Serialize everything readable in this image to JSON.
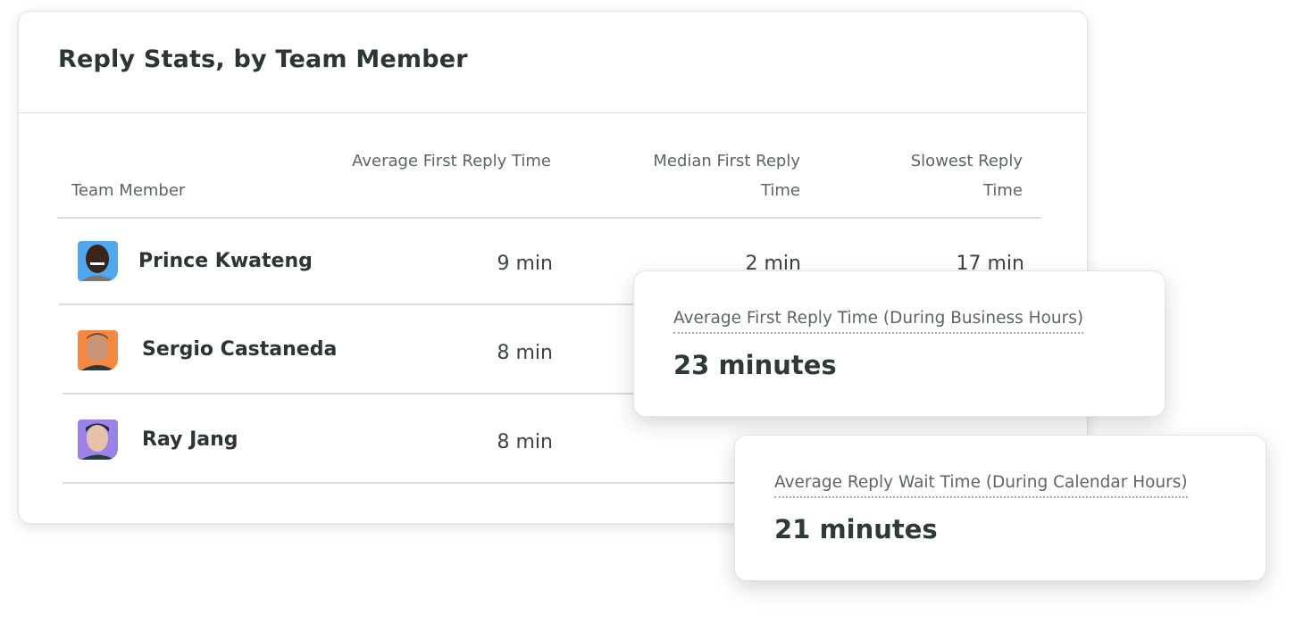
{
  "card": {
    "title": "Reply Stats, by Team Member",
    "columns": [
      "Team Member",
      "Average First Reply Time",
      "Median First Reply Time",
      "Slowest Reply Time"
    ],
    "column_lines": {
      "median": [
        "Median First Reply",
        "Time"
      ],
      "slowest": [
        "Slowest Reply",
        "Time"
      ]
    },
    "rows": [
      {
        "name": "Prince Kwateng",
        "avg": "9 min",
        "median": "2 min",
        "slowest": "17 min",
        "avatar_color": "#4fa8f0"
      },
      {
        "name": "Sergio Castaneda",
        "avg": "8 min",
        "avatar_color": "#f5883e"
      },
      {
        "name": "Ray Jang",
        "avg": "8 min",
        "avatar_color": "#9b82e8"
      }
    ]
  },
  "popovers": [
    {
      "label": "Average First Reply Time (During Business Hours)",
      "value": "23 minutes"
    },
    {
      "label": "Average Reply Wait Time (During Calendar Hours)",
      "value": "21 minutes"
    }
  ]
}
